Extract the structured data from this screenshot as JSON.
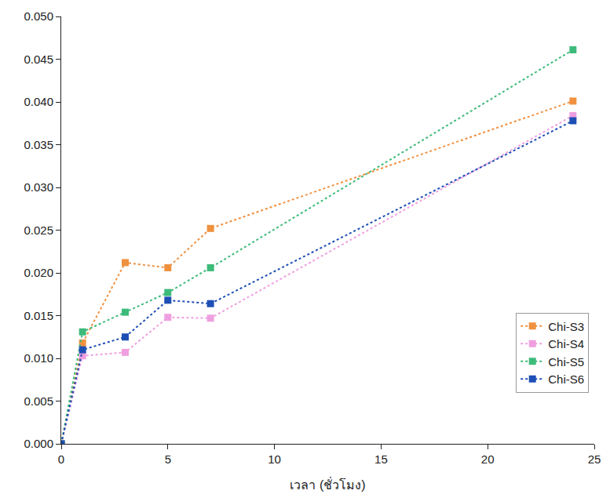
{
  "chart_data": {
    "type": "scatter",
    "x_label": "เวลา (ชั่วโมง)",
    "xlim": [
      0,
      25
    ],
    "xticks": [
      0,
      5,
      10,
      15,
      20,
      25
    ],
    "ylim": [
      0,
      0.05
    ],
    "yticks": [
      {
        "value": 0,
        "label": "0.000"
      },
      {
        "value": 0.005,
        "label": "0.005"
      },
      {
        "value": 0.01,
        "label": "0.010"
      },
      {
        "value": 0.015,
        "label": "0.015"
      },
      {
        "value": 0.02,
        "label": "0.020"
      },
      {
        "value": 0.025,
        "label": "0.025"
      },
      {
        "value": 0.03,
        "label": "0.030"
      },
      {
        "value": 0.035,
        "label": "0.035"
      },
      {
        "value": 0.04,
        "label": "0.040"
      },
      {
        "value": 0.045,
        "label": "0.045"
      },
      {
        "value": 0.05,
        "label": "0.050"
      }
    ],
    "grid": false,
    "legend": "lower right",
    "marker": "square",
    "line_style": "dot",
    "series": [
      {
        "name": "Chi-S3",
        "color": "#f0913f",
        "x": [
          0,
          1,
          3,
          5,
          7,
          24
        ],
        "values": [
          0,
          0.0118,
          0.0212,
          0.0206,
          0.0252,
          0.0401
        ]
      },
      {
        "name": "Chi-S4",
        "color": "#ef9fdf",
        "x": [
          0,
          1,
          3,
          5,
          7,
          24
        ],
        "values": [
          0,
          0.0103,
          0.0107,
          0.0148,
          0.0147,
          0.0384
        ]
      },
      {
        "name": "Chi-S5",
        "color": "#3dbb7a",
        "x": [
          0,
          1,
          3,
          5,
          7,
          24
        ],
        "values": [
          0,
          0.0131,
          0.0154,
          0.0177,
          0.0206,
          0.0461
        ]
      },
      {
        "name": "Chi-S6",
        "color": "#1d4fb5",
        "x": [
          0,
          1,
          3,
          5,
          7,
          24
        ],
        "values": [
          0,
          0.011,
          0.0125,
          0.0168,
          0.0164,
          0.0378
        ]
      }
    ]
  }
}
